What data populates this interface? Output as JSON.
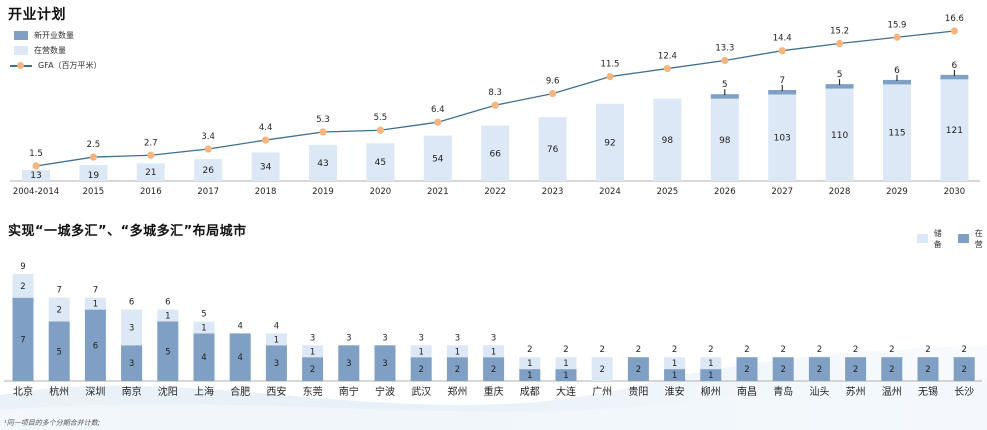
{
  "colors": {
    "new_open": "#7f9fc4",
    "in_operation": "#dce8f5",
    "gfa_line": "#3f6f8f",
    "gfa_marker": "#f5b57e",
    "axis": "#bfbfbf"
  },
  "chart_data": [
    {
      "type": "bar",
      "title": "开业计划",
      "legend": [
        "新开业数量",
        "在营数量",
        "GFA（百万平米）"
      ],
      "legend_position": "top-left",
      "categories": [
        "2004-2014",
        "2015",
        "2016",
        "2017",
        "2018",
        "2019",
        "2020",
        "2021",
        "2022",
        "2023",
        "2024",
        "2025",
        "2026",
        "2027",
        "2028",
        "2029",
        "2030"
      ],
      "series": [
        {
          "name": "在营数量",
          "values": [
            13,
            19,
            21,
            26,
            34,
            43,
            45,
            54,
            66,
            76,
            92,
            98,
            98,
            103,
            110,
            115,
            121
          ]
        },
        {
          "name": "新开业数量",
          "values": [
            null,
            null,
            null,
            null,
            null,
            null,
            null,
            null,
            null,
            null,
            null,
            null,
            5,
            7,
            5,
            6,
            6
          ]
        },
        {
          "name": "GFA（百万平米）",
          "type": "line",
          "values": [
            1.5,
            2.5,
            2.7,
            3.4,
            4.4,
            5.3,
            5.5,
            6.4,
            8.3,
            9.6,
            11.5,
            12.4,
            13.3,
            14.4,
            15.2,
            15.9,
            16.6
          ]
        }
      ],
      "grid": false
    },
    {
      "type": "bar",
      "stacked": true,
      "title": "实现“一城多汇”、“多城多汇”布局城市",
      "legend": [
        "储备",
        "在营"
      ],
      "legend_position": "top-right",
      "categories": [
        "北京",
        "杭州",
        "深圳",
        "南京",
        "沈阳",
        "上海",
        "合肥",
        "西安",
        "东莞",
        "南宁",
        "宁波",
        "武汉",
        "郑州",
        "重庆",
        "成都",
        "大连",
        "广州",
        "贵阳",
        "淮安",
        "柳州",
        "南昌",
        "青岛",
        "汕头",
        "苏州",
        "温州",
        "无锡",
        "长沙"
      ],
      "series": [
        {
          "name": "在营",
          "values": [
            7,
            5,
            6,
            3,
            5,
            4,
            4,
            3,
            2,
            3,
            3,
            2,
            2,
            2,
            1,
            1,
            0,
            2,
            1,
            1,
            2,
            2,
            2,
            2,
            2,
            2,
            2
          ]
        },
        {
          "name": "储备",
          "values": [
            2,
            2,
            1,
            3,
            1,
            1,
            0,
            1,
            1,
            0,
            0,
            1,
            1,
            1,
            1,
            1,
            2,
            0,
            1,
            1,
            0,
            0,
            0,
            0,
            0,
            0,
            0
          ]
        }
      ],
      "totals": [
        9,
        7,
        7,
        6,
        6,
        5,
        4,
        4,
        3,
        3,
        3,
        3,
        3,
        3,
        2,
        2,
        2,
        2,
        2,
        2,
        2,
        2,
        2,
        2,
        2,
        2,
        2
      ],
      "grid": false
    }
  ],
  "footnote": "¹同一项目的多个分期合并计数;"
}
